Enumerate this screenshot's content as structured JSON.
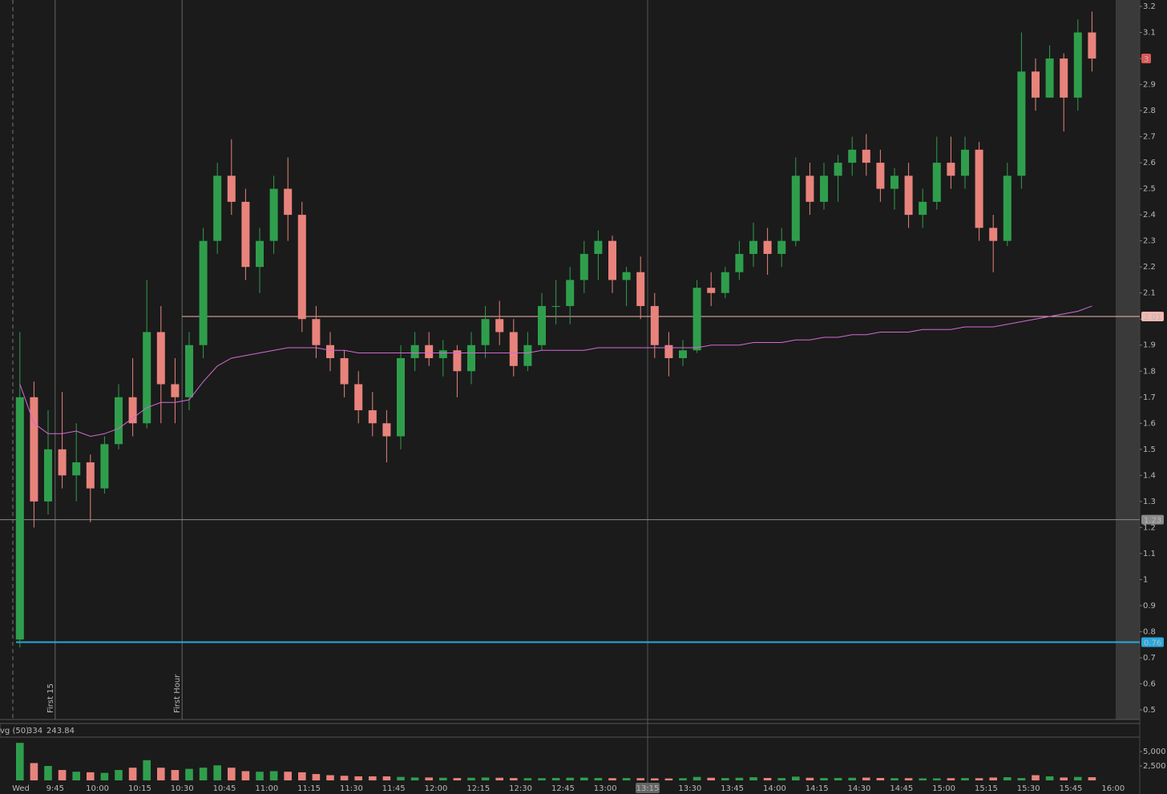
{
  "chart_data": {
    "type": "candlestick",
    "x_labels": [
      "Wed",
      "9:45",
      "10:00",
      "10:15",
      "10:30",
      "10:45",
      "11:00",
      "11:15",
      "11:30",
      "11:45",
      "12:00",
      "12:15",
      "12:30",
      "12:45",
      "13:00",
      "13:15",
      "13:30",
      "13:45",
      "14:00",
      "14:15",
      "14:30",
      "14:45",
      "15:00",
      "15:15",
      "15:30",
      "15:45",
      "16:00"
    ],
    "crosshair_label": "13:15",
    "markers": [
      "First 15",
      "First Hour"
    ],
    "ylim": [
      0.5,
      3.2
    ],
    "yticks": [
      0.5,
      0.6,
      0.7,
      0.8,
      0.9,
      1,
      1.1,
      1.2,
      1.3,
      1.4,
      1.5,
      1.6,
      1.7,
      1.8,
      1.9,
      2,
      2.1,
      2.2,
      2.3,
      2.4,
      2.5,
      2.6,
      2.7,
      2.8,
      2.9,
      3,
      3.1,
      3.2
    ],
    "up_color": "#2f9e4c",
    "down_color": "#e8837c",
    "candles": [
      {
        "open": 0.77,
        "high": 1.95,
        "low": 0.74,
        "close": 1.7
      },
      {
        "open": 1.7,
        "high": 1.76,
        "low": 1.2,
        "close": 1.3
      },
      {
        "open": 1.3,
        "high": 1.65,
        "low": 1.25,
        "close": 1.5
      },
      {
        "open": 1.5,
        "high": 1.72,
        "low": 1.35,
        "close": 1.4
      },
      {
        "open": 1.4,
        "high": 1.6,
        "low": 1.3,
        "close": 1.45
      },
      {
        "open": 1.45,
        "high": 1.48,
        "low": 1.22,
        "close": 1.35
      },
      {
        "open": 1.35,
        "high": 1.55,
        "low": 1.33,
        "close": 1.52
      },
      {
        "open": 1.52,
        "high": 1.75,
        "low": 1.5,
        "close": 1.7
      },
      {
        "open": 1.7,
        "high": 1.85,
        "low": 1.55,
        "close": 1.6
      },
      {
        "open": 1.6,
        "high": 2.15,
        "low": 1.58,
        "close": 1.95
      },
      {
        "open": 1.95,
        "high": 2.05,
        "low": 1.6,
        "close": 1.75
      },
      {
        "open": 1.75,
        "high": 1.85,
        "low": 1.6,
        "close": 1.7
      },
      {
        "open": 1.7,
        "high": 1.95,
        "low": 1.65,
        "close": 1.9
      },
      {
        "open": 1.9,
        "high": 2.35,
        "low": 1.85,
        "close": 2.3
      },
      {
        "open": 2.3,
        "high": 2.6,
        "low": 2.25,
        "close": 2.55
      },
      {
        "open": 2.55,
        "high": 2.69,
        "low": 2.4,
        "close": 2.45
      },
      {
        "open": 2.45,
        "high": 2.5,
        "low": 2.15,
        "close": 2.2
      },
      {
        "open": 2.2,
        "high": 2.35,
        "low": 2.1,
        "close": 2.3
      },
      {
        "open": 2.3,
        "high": 2.55,
        "low": 2.25,
        "close": 2.5
      },
      {
        "open": 2.5,
        "high": 2.62,
        "low": 2.3,
        "close": 2.4
      },
      {
        "open": 2.4,
        "high": 2.45,
        "low": 1.95,
        "close": 2.0
      },
      {
        "open": 2.0,
        "high": 2.05,
        "low": 1.85,
        "close": 1.9
      },
      {
        "open": 1.9,
        "high": 1.95,
        "low": 1.8,
        "close": 1.85
      },
      {
        "open": 1.85,
        "high": 1.88,
        "low": 1.7,
        "close": 1.75
      },
      {
        "open": 1.75,
        "high": 1.8,
        "low": 1.6,
        "close": 1.65
      },
      {
        "open": 1.65,
        "high": 1.72,
        "low": 1.55,
        "close": 1.6
      },
      {
        "open": 1.6,
        "high": 1.65,
        "low": 1.45,
        "close": 1.55
      },
      {
        "open": 1.55,
        "high": 1.9,
        "low": 1.5,
        "close": 1.85
      },
      {
        "open": 1.85,
        "high": 1.95,
        "low": 1.8,
        "close": 1.9
      },
      {
        "open": 1.9,
        "high": 1.95,
        "low": 1.82,
        "close": 1.85
      },
      {
        "open": 1.85,
        "high": 1.92,
        "low": 1.78,
        "close": 1.88
      },
      {
        "open": 1.88,
        "high": 1.9,
        "low": 1.7,
        "close": 1.8
      },
      {
        "open": 1.8,
        "high": 1.95,
        "low": 1.75,
        "close": 1.9
      },
      {
        "open": 1.9,
        "high": 2.05,
        "low": 1.85,
        "close": 2.0
      },
      {
        "open": 2.0,
        "high": 2.07,
        "low": 1.9,
        "close": 1.95
      },
      {
        "open": 1.95,
        "high": 2.0,
        "low": 1.78,
        "close": 1.82
      },
      {
        "open": 1.82,
        "high": 1.95,
        "low": 1.8,
        "close": 1.9
      },
      {
        "open": 1.9,
        "high": 2.1,
        "low": 1.88,
        "close": 2.05
      },
      {
        "open": 2.05,
        "high": 2.15,
        "low": 1.98,
        "close": 2.05
      },
      {
        "open": 2.05,
        "high": 2.2,
        "low": 1.98,
        "close": 2.15
      },
      {
        "open": 2.15,
        "high": 2.3,
        "low": 2.1,
        "close": 2.25
      },
      {
        "open": 2.25,
        "high": 2.34,
        "low": 2.15,
        "close": 2.3
      },
      {
        "open": 2.3,
        "high": 2.32,
        "low": 2.1,
        "close": 2.15
      },
      {
        "open": 2.15,
        "high": 2.2,
        "low": 2.05,
        "close": 2.18
      },
      {
        "open": 2.18,
        "high": 2.24,
        "low": 2.0,
        "close": 2.05
      },
      {
        "open": 2.05,
        "high": 2.1,
        "low": 1.85,
        "close": 1.9
      },
      {
        "open": 1.9,
        "high": 1.95,
        "low": 1.78,
        "close": 1.85
      },
      {
        "open": 1.85,
        "high": 1.92,
        "low": 1.82,
        "close": 1.88
      },
      {
        "open": 1.88,
        "high": 2.15,
        "low": 1.87,
        "close": 2.12
      },
      {
        "open": 2.12,
        "high": 2.18,
        "low": 2.05,
        "close": 2.1
      },
      {
        "open": 2.1,
        "high": 2.2,
        "low": 2.08,
        "close": 2.18
      },
      {
        "open": 2.18,
        "high": 2.3,
        "low": 2.15,
        "close": 2.25
      },
      {
        "open": 2.25,
        "high": 2.37,
        "low": 2.2,
        "close": 2.3
      },
      {
        "open": 2.3,
        "high": 2.35,
        "low": 2.17,
        "close": 2.25
      },
      {
        "open": 2.25,
        "high": 2.35,
        "low": 2.2,
        "close": 2.3
      },
      {
        "open": 2.3,
        "high": 2.62,
        "low": 2.28,
        "close": 2.55
      },
      {
        "open": 2.55,
        "high": 2.6,
        "low": 2.4,
        "close": 2.45
      },
      {
        "open": 2.45,
        "high": 2.6,
        "low": 2.42,
        "close": 2.55
      },
      {
        "open": 2.55,
        "high": 2.63,
        "low": 2.45,
        "close": 2.6
      },
      {
        "open": 2.6,
        "high": 2.7,
        "low": 2.55,
        "close": 2.65
      },
      {
        "open": 2.65,
        "high": 2.71,
        "low": 2.55,
        "close": 2.6
      },
      {
        "open": 2.6,
        "high": 2.65,
        "low": 2.45,
        "close": 2.5
      },
      {
        "open": 2.5,
        "high": 2.58,
        "low": 2.42,
        "close": 2.55
      },
      {
        "open": 2.55,
        "high": 2.6,
        "low": 2.35,
        "close": 2.4
      },
      {
        "open": 2.4,
        "high": 2.5,
        "low": 2.35,
        "close": 2.45
      },
      {
        "open": 2.45,
        "high": 2.7,
        "low": 2.42,
        "close": 2.6
      },
      {
        "open": 2.6,
        "high": 2.7,
        "low": 2.5,
        "close": 2.55
      },
      {
        "open": 2.55,
        "high": 2.7,
        "low": 2.5,
        "close": 2.65
      },
      {
        "open": 2.65,
        "high": 2.68,
        "low": 2.3,
        "close": 2.35
      },
      {
        "open": 2.35,
        "high": 2.4,
        "low": 2.18,
        "close": 2.3
      },
      {
        "open": 2.3,
        "high": 2.6,
        "low": 2.28,
        "close": 2.55
      },
      {
        "open": 2.55,
        "high": 3.1,
        "low": 2.5,
        "close": 2.95
      },
      {
        "open": 2.95,
        "high": 3.0,
        "low": 2.8,
        "close": 2.85
      },
      {
        "open": 2.85,
        "high": 3.05,
        "low": 2.85,
        "close": 3.0
      },
      {
        "open": 3.0,
        "high": 3.02,
        "low": 2.72,
        "close": 2.85
      },
      {
        "open": 2.85,
        "high": 3.15,
        "low": 2.8,
        "close": 3.1
      },
      {
        "open": 3.1,
        "high": 3.18,
        "low": 2.95,
        "close": 3.0
      }
    ],
    "ma": {
      "color": "#d46ad4",
      "values": [
        1.75,
        1.6,
        1.56,
        1.56,
        1.57,
        1.55,
        1.56,
        1.58,
        1.62,
        1.66,
        1.68,
        1.68,
        1.69,
        1.76,
        1.82,
        1.85,
        1.86,
        1.87,
        1.88,
        1.89,
        1.89,
        1.89,
        1.88,
        1.88,
        1.87,
        1.87,
        1.87,
        1.87,
        1.87,
        1.87,
        1.87,
        1.87,
        1.87,
        1.87,
        1.87,
        1.87,
        1.87,
        1.88,
        1.88,
        1.88,
        1.88,
        1.89,
        1.89,
        1.89,
        1.89,
        1.89,
        1.89,
        1.89,
        1.89,
        1.9,
        1.9,
        1.9,
        1.91,
        1.91,
        1.91,
        1.92,
        1.92,
        1.93,
        1.93,
        1.94,
        1.94,
        1.95,
        1.95,
        1.95,
        1.96,
        1.96,
        1.96,
        1.97,
        1.97,
        1.97,
        1.98,
        1.99,
        2.0,
        2.01,
        2.02,
        2.03,
        2.05
      ]
    },
    "levels": [
      {
        "value": 2.01,
        "label": "2.01",
        "color": "#f2b8b2"
      },
      {
        "value": 1.23,
        "label": "1.23",
        "color": "#8a8a8a"
      },
      {
        "value": 0.76,
        "label": "0.76",
        "color": "#29a8e0"
      }
    ],
    "last_price": {
      "value": 3,
      "label": "3",
      "color": "#e05555"
    },
    "volume": {
      "header": [
        "vg (50)",
        "334",
        "243.84"
      ],
      "ylim": [
        0,
        7500
      ],
      "yticks": [
        {
          "value": 2500,
          "label": "2,500"
        },
        {
          "value": 5000,
          "label": "5,000"
        }
      ],
      "values": [
        6500,
        3000,
        2500,
        1800,
        1500,
        1400,
        1300,
        1800,
        2200,
        3500,
        2200,
        1800,
        2000,
        2200,
        2600,
        2200,
        1600,
        1500,
        1600,
        1500,
        1400,
        1100,
        900,
        800,
        700,
        700,
        700,
        600,
        500,
        500,
        450,
        400,
        450,
        500,
        450,
        400,
        380,
        380,
        420,
        460,
        480,
        420,
        380,
        400,
        380,
        350,
        330,
        380,
        600,
        450,
        400,
        450,
        550,
        420,
        400,
        650,
        450,
        400,
        420,
        450,
        480,
        420,
        380,
        380,
        350,
        350,
        380,
        400,
        380,
        500,
        550,
        400,
        900,
        700,
        500,
        600,
        550
      ]
    }
  }
}
